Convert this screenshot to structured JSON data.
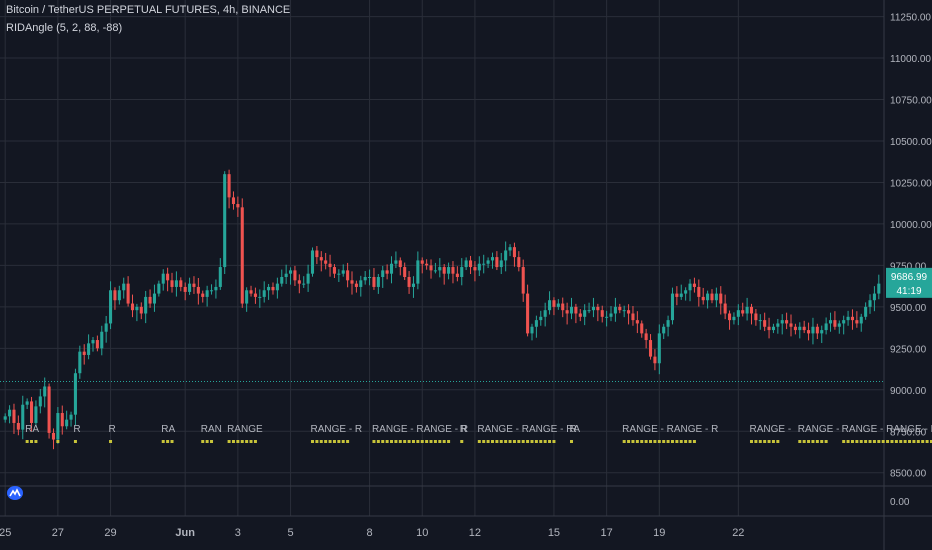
{
  "header": {
    "symbol_title": "Bitcoin / TetherUS PERPETUAL FUTURES, 4h, BINANCE",
    "indicator_label": "RIDAngle (5, 2, 88, -88)"
  },
  "colors": {
    "background": "#131722",
    "grid": "#2a2e39",
    "up": "#26a69a",
    "down": "#ef5350",
    "range_text": "#b2b5be",
    "range_dot": "#c8c43a",
    "price_tag": "#26a69a",
    "dotted_line": "#26a69a",
    "axis_text": "#b2b5be"
  },
  "chart_data": {
    "type": "candlestick",
    "title": "Bitcoin / TetherUS PERPETUAL FUTURES, 4h, BINANCE",
    "interval": "4h",
    "price_axis_ticks": [
      8500,
      8750,
      9000,
      9250,
      9500,
      9750,
      10000,
      10250,
      10500,
      10750,
      11000,
      11250
    ],
    "price_axis_labels": [
      "8500.00",
      "8750.00",
      "9000.00",
      "9250.00",
      "9500.00",
      "9750.00",
      "10000.00",
      "10250.00",
      "10500.00",
      "10750.00",
      "11000.00",
      "11250.00"
    ],
    "ylim": [
      8420,
      11350
    ],
    "date_axis_labels": [
      "25",
      "27",
      "29",
      "Jun",
      "3",
      "5",
      "8",
      "10",
      "12",
      "15",
      "17",
      "19",
      "22"
    ],
    "date_axis_positions": [
      0,
      12,
      24,
      41,
      53,
      65,
      83,
      95,
      107,
      125,
      137,
      149,
      167
    ],
    "last_price": "9686.99",
    "countdown": "41:19",
    "horizontal_line": 9050,
    "grid": true,
    "closes": [
      8840,
      8880,
      8800,
      8760,
      8910,
      8930,
      8800,
      8900,
      8960,
      9020,
      8740,
      8700,
      8860,
      8780,
      8820,
      8850,
      9100,
      9230,
      9210,
      9280,
      9300,
      9250,
      9350,
      9400,
      9600,
      9540,
      9600,
      9640,
      9520,
      9480,
      9500,
      9460,
      9560,
      9520,
      9580,
      9640,
      9700,
      9660,
      9620,
      9660,
      9620,
      9590,
      9640,
      9620,
      9580,
      9560,
      9600,
      9600,
      9620,
      9740,
      10300,
      10160,
      10120,
      10100,
      9520,
      9600,
      9580,
      9560,
      9560,
      9600,
      9620,
      9600,
      9640,
      9680,
      9700,
      9720,
      9660,
      9640,
      9640,
      9700,
      9840,
      9800,
      9780,
      9760,
      9740,
      9700,
      9700,
      9720,
      9660,
      9640,
      9620,
      9660,
      9680,
      9680,
      9620,
      9680,
      9720,
      9700,
      9760,
      9780,
      9740,
      9680,
      9620,
      9640,
      9780,
      9760,
      9750,
      9720,
      9720,
      9740,
      9700,
      9740,
      9700,
      9680,
      9740,
      9780,
      9740,
      9720,
      9760,
      9760,
      9780,
      9800,
      9740,
      9780,
      9840,
      9860,
      9800,
      9740,
      9580,
      9340,
      9380,
      9420,
      9440,
      9480,
      9540,
      9500,
      9520,
      9480,
      9460,
      9500,
      9460,
      9440,
      9480,
      9480,
      9500,
      9480,
      9440,
      9440,
      9460,
      9500,
      9480,
      9480,
      9460,
      9420,
      9400,
      9340,
      9300,
      9200,
      9160,
      9340,
      9380,
      9420,
      9580,
      9560,
      9580,
      9600,
      9640,
      9620,
      9560,
      9540,
      9580,
      9540,
      9580,
      9520,
      9460,
      9420,
      9440,
      9480,
      9460,
      9500,
      9460,
      9420,
      9420,
      9380,
      9360,
      9380,
      9400,
      9420,
      9400,
      9380,
      9360,
      9380,
      9360,
      9340,
      9380,
      9340,
      9360,
      9400,
      9420,
      9380,
      9400,
      9420,
      9440,
      9420,
      9400,
      9440,
      9500,
      9540,
      9580,
      9640
    ],
    "range_labels": [
      {
        "label": "RA",
        "start": 5,
        "dots": 3
      },
      {
        "label": "",
        "start": 12,
        "dots": 1
      },
      {
        "label": "R",
        "start": 16,
        "dots": 1
      },
      {
        "label": "R",
        "start": 24,
        "dots": 1
      },
      {
        "label": "RA",
        "start": 36,
        "dots": 3
      },
      {
        "label": "RAN",
        "start": 45,
        "dots": 3
      },
      {
        "label": "RANGE",
        "start": 51,
        "dots": 7
      },
      {
        "label": "RANGE - R",
        "start": 70,
        "dots": 9
      },
      {
        "label": "RANGE - RANGE - R",
        "start": 84,
        "dots": 18
      },
      {
        "label": "R",
        "start": 104,
        "dots": 1
      },
      {
        "label": "RANGE - RANGE - RA",
        "start": 108,
        "dots": 18
      },
      {
        "label": "R",
        "start": 129,
        "dots": 1
      },
      {
        "label": "RANGE - RANGE - R",
        "start": 141,
        "dots": 17
      },
      {
        "label": "RANGE -",
        "start": 170,
        "dots": 7
      },
      {
        "label": "RANGE -",
        "start": 181,
        "dots": 7
      },
      {
        "label": "RANGE - RANGE - RANGE -",
        "start": 191,
        "dots": 23
      }
    ],
    "lower_pane_label": "0.00"
  }
}
